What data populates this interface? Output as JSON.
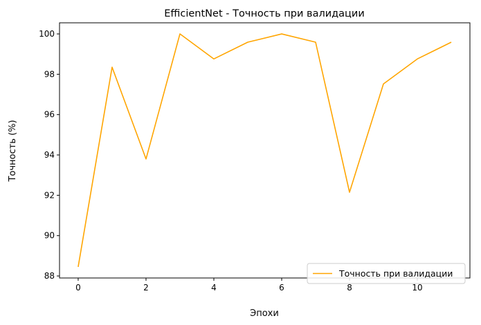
{
  "chart_data": {
    "type": "line",
    "title": "EfficientNet - Точность при валидации",
    "xlabel": "Эпохи",
    "ylabel": "Точность (%)",
    "x": [
      0,
      1,
      2,
      3,
      4,
      5,
      6,
      7,
      8,
      9,
      10,
      11
    ],
    "series": [
      {
        "name": "Точность при валидации",
        "color": "#FFA500",
        "values": [
          88.45,
          98.35,
          93.8,
          100.0,
          98.76,
          99.59,
          100.0,
          99.59,
          92.15,
          97.52,
          98.76,
          99.59
        ]
      }
    ],
    "xlim": [
      -0.55,
      11.55
    ],
    "ylim": [
      87.9,
      100.55
    ],
    "xticks": [
      0,
      2,
      4,
      6,
      8,
      10
    ],
    "yticks": [
      88,
      90,
      92,
      94,
      96,
      98,
      100
    ],
    "grid": false,
    "legend_position": "lower-right"
  }
}
